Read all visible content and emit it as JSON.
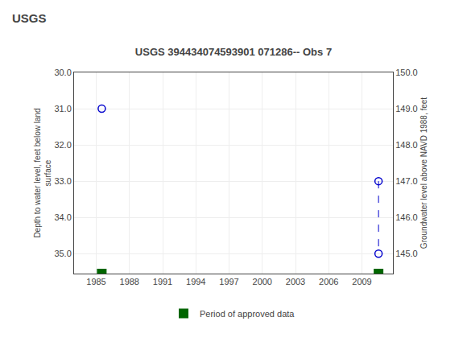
{
  "chart_data": {
    "type": "scatter",
    "title": "USGS 394434074593901 071286-- Obs 7",
    "ylabel": "Depth to water level, feet below land\nsurface",
    "y2label": "Groundwater level above NAVD 1988, feet",
    "xlim": [
      1983.0,
      2011.8
    ],
    "xticks": [
      1985,
      1988,
      1991,
      1994,
      1997,
      2000,
      2003,
      2006,
      2009
    ],
    "ylim": [
      35.55,
      30.0
    ],
    "yticks": [
      {
        "value": 30.0,
        "label": "30.0"
      },
      {
        "value": 31.0,
        "label": "31.0"
      },
      {
        "value": 32.0,
        "label": "32.0"
      },
      {
        "value": 33.0,
        "label": "33.0"
      },
      {
        "value": 34.0,
        "label": "34.0"
      },
      {
        "value": 35.0,
        "label": "35.0"
      }
    ],
    "y2lim": [
      144.45,
      150.0
    ],
    "y2ticks": [
      {
        "value": 150.0,
        "label": "150.0"
      },
      {
        "value": 149.0,
        "label": "149.0"
      },
      {
        "value": 148.0,
        "label": "148.0"
      },
      {
        "value": 147.0,
        "label": "147.0"
      },
      {
        "value": 146.0,
        "label": "146.0"
      },
      {
        "value": 145.0,
        "label": "145.0"
      }
    ],
    "series": [
      {
        "type": "scatter",
        "x": [
          1985.5
        ],
        "values": [
          31.0
        ],
        "color": "#0000cc",
        "marker": "open circle"
      },
      {
        "type": "line",
        "x": [
          2010.5,
          2010.5
        ],
        "values": [
          33.0,
          35.0
        ],
        "color": "#0000cc",
        "marker": "open circle",
        "line_style": "dashed"
      },
      {
        "name": "Period of approved data",
        "type": "bar",
        "x": [
          1985.5,
          2010.5
        ],
        "color": "#006600"
      }
    ],
    "annotations": [
      {
        "text": "USGS"
      }
    ],
    "grid": true,
    "legend": "bottom"
  }
}
